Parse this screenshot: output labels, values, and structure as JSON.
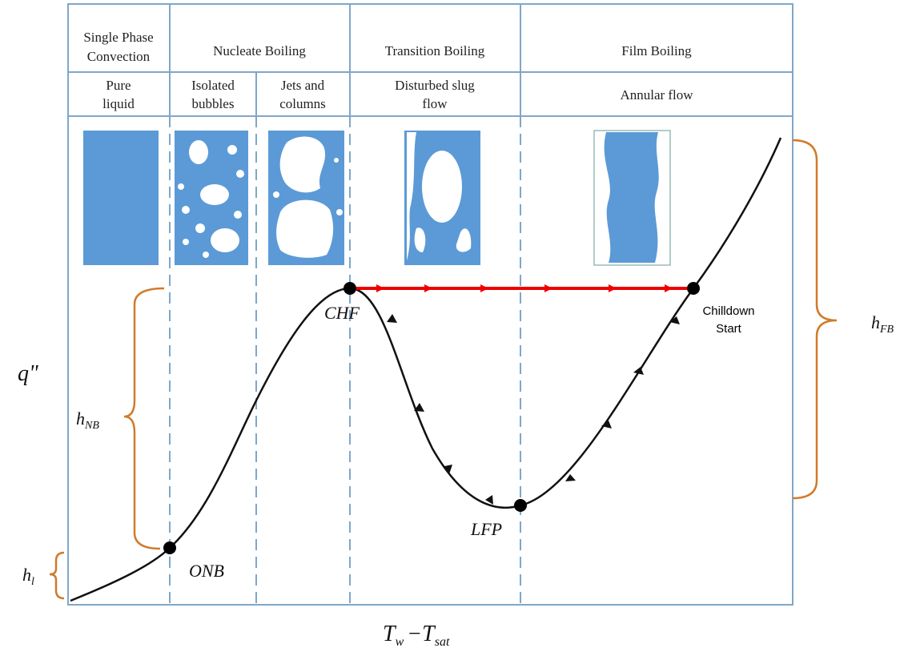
{
  "header": {
    "regimes": [
      [
        "Single Phase",
        "Convection"
      ],
      [
        "Nucleate Boiling"
      ],
      [
        "Transition Boiling"
      ],
      [
        "Film Boiling"
      ]
    ],
    "flow_patterns": [
      [
        "Pure",
        "liquid"
      ],
      [
        "Isolated",
        "bubbles"
      ],
      [
        "Jets and",
        "columns"
      ],
      [
        "Disturbed slug",
        "flow"
      ],
      [
        "Annular flow"
      ]
    ]
  },
  "points": {
    "onb": "ONB",
    "chf": "CHF",
    "lfp": "LFP",
    "chilldown": [
      "Chilldown",
      "Start"
    ]
  },
  "axes": {
    "y": "q\"",
    "x": {
      "t1": "T",
      "s1": "w",
      "t2": "−T",
      "s2": "sat"
    }
  },
  "coefficients": {
    "h_l": {
      "main": "h",
      "sub": "l"
    },
    "h_nb": {
      "main": "h",
      "sub": "NB"
    },
    "h_fb": {
      "main": "h",
      "sub": "FB"
    }
  }
}
